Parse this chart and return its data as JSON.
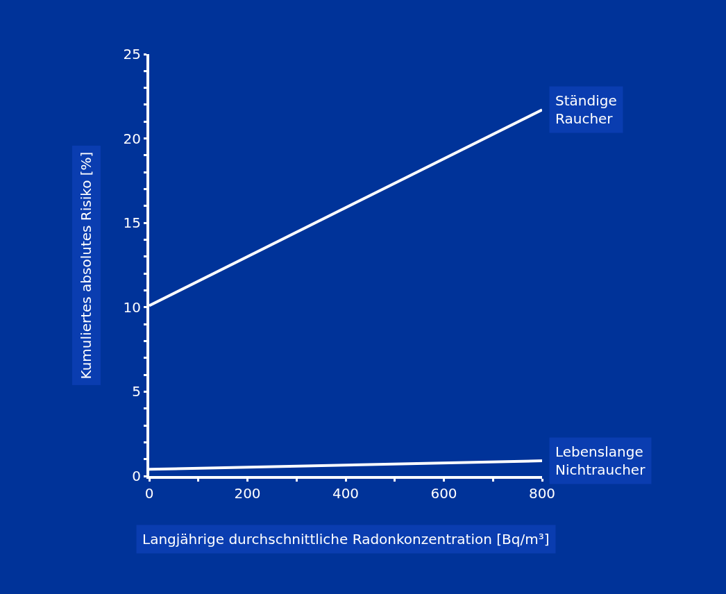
{
  "chart_data": {
    "type": "line",
    "xlabel": "Langjährige durchschnittliche Radonkonzentration [Bq/m³]",
    "ylabel": "Kumuliertes absolutes Risiko [%]",
    "x": [
      0,
      800
    ],
    "series": [
      {
        "color": "#ffffff",
        "values": [
          10.1,
          21.7
        ]
      },
      {
        "color": "#ffffff",
        "values": [
          0.4,
          0.9
        ]
      }
    ],
    "annotations": [
      {
        "text": "Ständige\nRaucher",
        "x": 800,
        "y": 21.7
      },
      {
        "text": "Lebenslange\nNichtraucher",
        "x": 800,
        "y": 0.9
      }
    ],
    "xlim": [
      0,
      800
    ],
    "xticks": [
      0,
      {
        "value": 100,
        "label": null
      },
      200,
      {
        "value": 300,
        "label": null
      },
      400,
      {
        "value": 500,
        "label": null
      },
      600,
      {
        "value": 700,
        "label": null
      },
      800
    ],
    "ylim": [
      0,
      25
    ],
    "yticks": [
      0,
      {
        "value": 1,
        "label": null
      },
      {
        "value": 2,
        "label": null
      },
      {
        "value": 3,
        "label": null
      },
      {
        "value": 4,
        "label": null
      },
      5,
      {
        "value": 6,
        "label": null
      },
      {
        "value": 7,
        "label": null
      },
      {
        "value": 8,
        "label": null
      },
      {
        "value": 9,
        "label": null
      },
      10,
      {
        "value": 11,
        "label": null
      },
      {
        "value": 12,
        "label": null
      },
      {
        "value": 13,
        "label": null
      },
      {
        "value": 14,
        "label": null
      },
      15,
      {
        "value": 16,
        "label": null
      },
      {
        "value": 17,
        "label": null
      },
      {
        "value": 18,
        "label": null
      },
      {
        "value": 19,
        "label": null
      },
      20,
      {
        "value": 21,
        "label": null
      },
      {
        "value": 22,
        "label": null
      },
      {
        "value": 23,
        "label": null
      },
      {
        "value": 24,
        "label": null
      },
      25
    ],
    "grid": false,
    "marker": "none",
    "line_style": "solid"
  }
}
